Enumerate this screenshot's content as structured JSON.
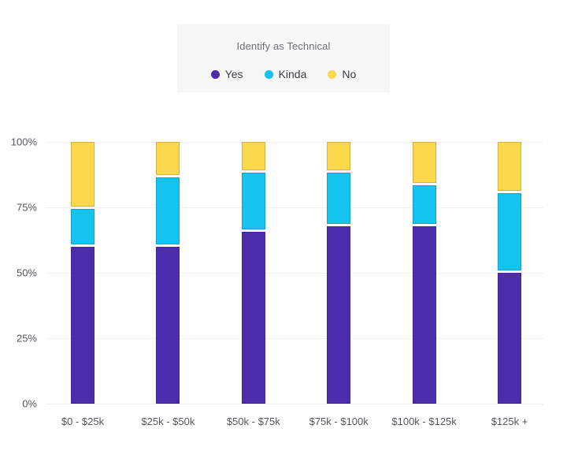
{
  "legend": {
    "title": "Identify as Technical",
    "items": [
      {
        "label": "Yes",
        "color": "#4b2dab"
      },
      {
        "label": "Kinda",
        "color": "#14c4ef"
      },
      {
        "label": "No",
        "color": "#fbd84b"
      }
    ]
  },
  "chart_data": {
    "type": "bar",
    "stacked": true,
    "unit": "percent",
    "title": "Identify as Technical",
    "categories": [
      "$0 - $25k",
      "$25k - $50k",
      "$50k - $75k",
      "$75k - $100k",
      "$100k - $125k",
      "$125k +"
    ],
    "series": [
      {
        "name": "Yes",
        "color": "#4b2dab",
        "values": [
          61,
          61,
          67,
          69,
          69,
          51
        ]
      },
      {
        "name": "Kinda",
        "color": "#14c4ef",
        "values": [
          14,
          26,
          22,
          20,
          15,
          30
        ]
      },
      {
        "name": "No",
        "color": "#fbd84b",
        "values": [
          25,
          13,
          11,
          11,
          16,
          19
        ]
      }
    ],
    "yticks": [
      {
        "label": "0%",
        "value": 0
      },
      {
        "label": "25%",
        "value": 25
      },
      {
        "label": "50%",
        "value": 50
      },
      {
        "label": "75%",
        "value": 75
      },
      {
        "label": "100%",
        "value": 100
      }
    ],
    "ylim": [
      0,
      100
    ],
    "grid": "horizontal",
    "legend_position": "top"
  }
}
